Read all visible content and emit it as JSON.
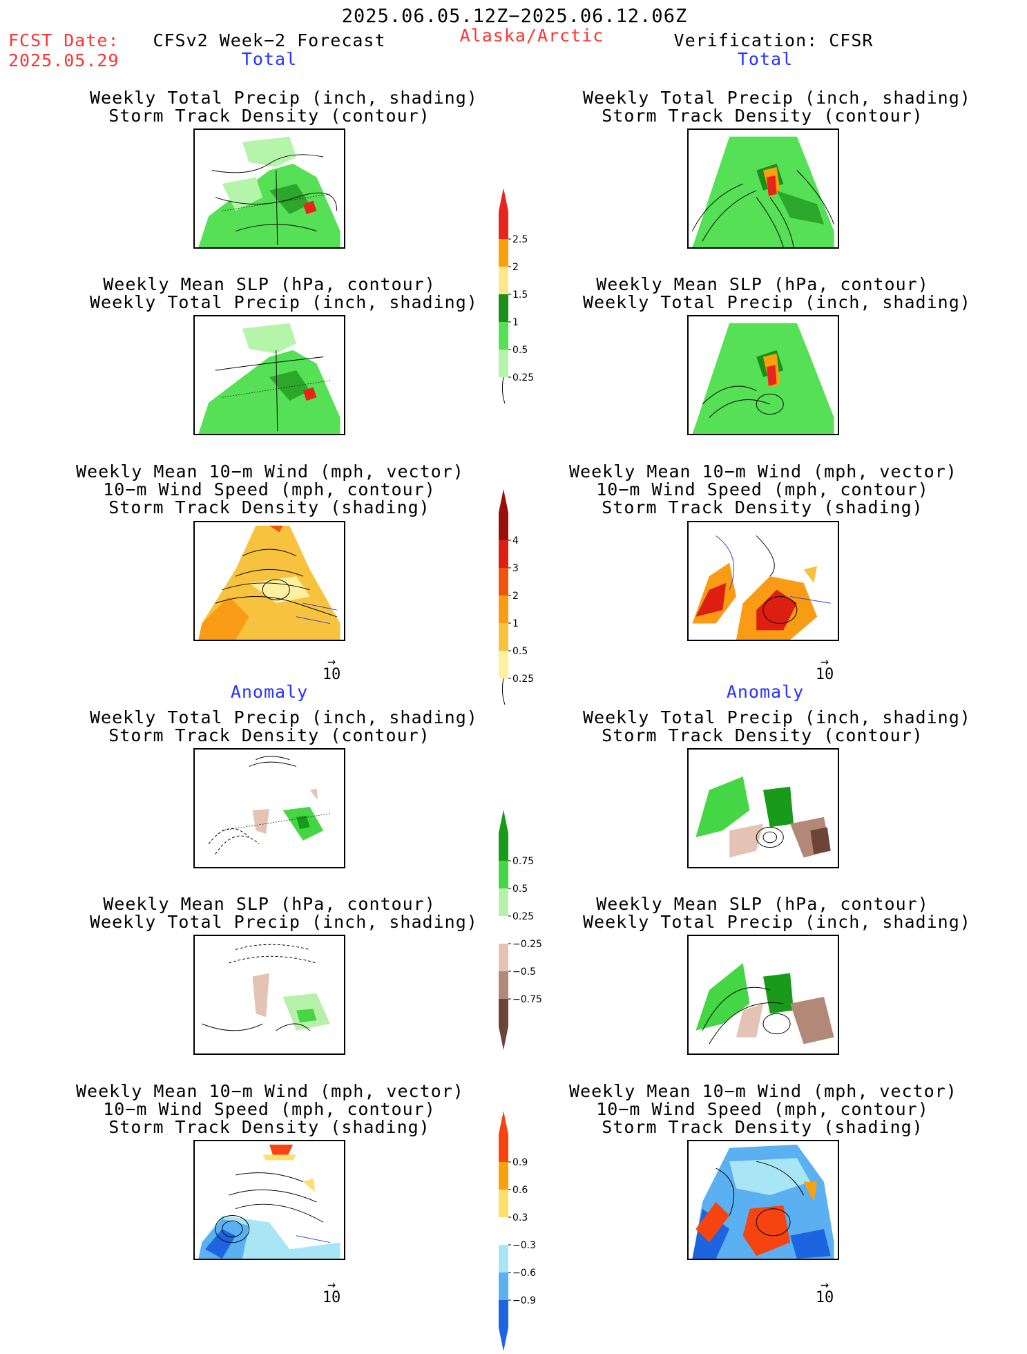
{
  "header": {
    "date_range": "2025.06.05.12Z−2025.06.12.06Z",
    "fcst_label": "FCST Date:",
    "fcst_date": "2025.05.29",
    "model": "CFSv2 Week−2 Forecast",
    "region": "Alaska/Arctic",
    "verification": "Verification: CFSR"
  },
  "sections": {
    "total": "Total",
    "anomaly": "Anomaly"
  },
  "titles": {
    "precip_storm": [
      "Weekly Total Precip (inch, shading)",
      "Storm Track Density (contour)"
    ],
    "slp_precip": [
      "Weekly Mean SLP (hPa, contour)",
      "Weekly Total Precip (inch, shading)"
    ],
    "wind": [
      "Weekly Mean 10−m Wind (mph, vector)",
      "10−m Wind Speed (mph, contour)",
      "Storm Track Density (shading)"
    ]
  },
  "vector_ref": "10",
  "colorbars": {
    "precip_total": {
      "labels": [
        "2.5",
        "2",
        "1.5",
        "1",
        "0.5",
        "0.25"
      ],
      "colors": [
        "#e8251b",
        "#f9a10c",
        "#fde68c",
        "#1a8f1a",
        "#55e055",
        "#b4f5aa"
      ]
    },
    "storm_total": {
      "labels": [
        "4",
        "3",
        "2",
        "1",
        "0.5",
        "0.25"
      ],
      "colors": [
        "#9b0e0e",
        "#dd1e12",
        "#f05510",
        "#f99b14",
        "#f7c23e",
        "#fdf0a0"
      ]
    },
    "precip_anom": {
      "labels": [
        "0.75",
        "0.5",
        "0.25",
        "−0.25",
        "−0.5",
        "−0.75"
      ],
      "colors": [
        "#1a9a1a",
        "#45d645",
        "#b6f0aa",
        "#ffffff",
        "#e4c2b4",
        "#b28878",
        "#6c4538"
      ]
    },
    "storm_anom": {
      "labels": [
        "0.9",
        "0.6",
        "0.3",
        "−0.3",
        "−0.6",
        "−0.9"
      ],
      "colors": [
        "#f54410",
        "#f9a10c",
        "#fde06a",
        "#ffffff",
        "#a8e6f5",
        "#5ab0f0",
        "#1c64e0"
      ]
    }
  },
  "colors": {
    "red_text": "#ff3333",
    "blue_text": "#2233ff"
  }
}
